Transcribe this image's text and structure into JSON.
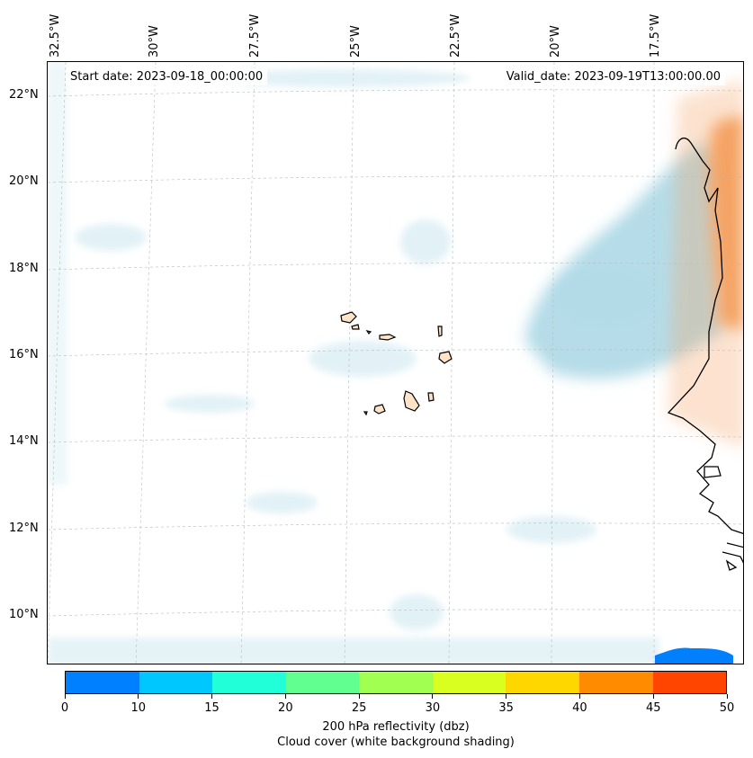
{
  "map": {
    "start_date": "Start date: 2023-09-18_00:00:00",
    "valid_date": "Valid_date: 2023-09-19T13:00:00.00",
    "lon_labels": [
      "32.5°W",
      "30°W",
      "27.5°W",
      "25°W",
      "22.5°W",
      "20°W",
      "17.5°W"
    ],
    "lat_labels": [
      "22°N",
      "20°N",
      "18°N",
      "16°N",
      "14°N",
      "12°N",
      "10°N"
    ],
    "cloud_color": "#add8e6",
    "reflectivity_high_color": "#f4a060",
    "land_color": "#fde3c8",
    "coast_color": "#000000"
  },
  "colorbar": {
    "tick_labels": [
      "0",
      "10",
      "15",
      "20",
      "25",
      "30",
      "35",
      "40",
      "45",
      "50"
    ],
    "colors": [
      "#0080ff",
      "#00c8ff",
      "#20ffd8",
      "#60ff90",
      "#a0ff50",
      "#d8ff20",
      "#ffd700",
      "#ff8c00",
      "#ff4500"
    ],
    "label_line1": "200 hPa reflectivity (dbz)",
    "label_line2": "Cloud cover (white background shading)"
  }
}
